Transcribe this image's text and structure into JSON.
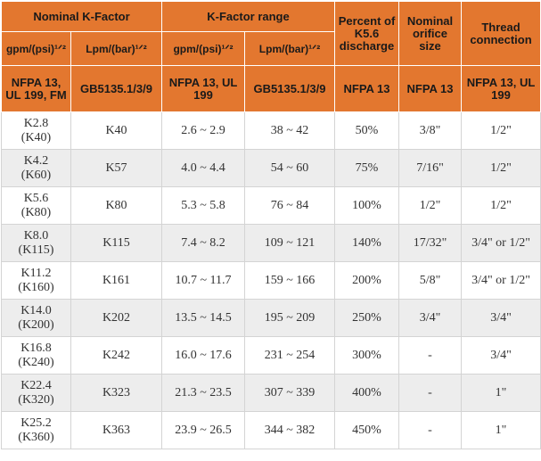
{
  "headers": {
    "nominal_k_factor": "Nominal K-Factor",
    "k_factor_range": "K-Factor range",
    "percent_k56": "Percent of K5.6 discharge",
    "nominal_orifice": "Nominal orifice size",
    "thread_connection": "Thread connection",
    "unit_gpm_1": "gpm/(psi)¹ᐟ²",
    "unit_lpm_1": "Lpm/(bar)¹ᐟ²",
    "unit_gpm_2": "gpm/(psi)¹ᐟ²",
    "unit_lpm_2": "Lpm/(bar)¹ᐟ²",
    "std_nfpa_ul_fm": "NFPA 13, UL 199, FM",
    "std_gb_1": "GB5135.1/3/9",
    "std_nfpa_ul_1": "NFPA 13, UL 199",
    "std_gb_2": "GB5135.1/3/9",
    "std_nfpa_1": "NFPA 13",
    "std_nfpa_2": "NFPA 13",
    "std_nfpa_ul_2": "NFPA 13, UL 199"
  },
  "rows": [
    {
      "k_nominal": "K2.8",
      "k_metric": "(K40)",
      "gb_k": "K40",
      "gpm_range": "2.6 ~ 2.9",
      "lpm_range": "38 ~ 42",
      "percent": "50%",
      "orifice": "3/8\"",
      "thread": "1/2\""
    },
    {
      "k_nominal": "K4.2",
      "k_metric": "(K60)",
      "gb_k": "K57",
      "gpm_range": "4.0 ~ 4.4",
      "lpm_range": "54 ~ 60",
      "percent": "75%",
      "orifice": "7/16\"",
      "thread": "1/2\""
    },
    {
      "k_nominal": "K5.6",
      "k_metric": "(K80)",
      "gb_k": "K80",
      "gpm_range": "5.3 ~ 5.8",
      "lpm_range": "76 ~ 84",
      "percent": "100%",
      "orifice": "1/2\"",
      "thread": "1/2\""
    },
    {
      "k_nominal": "K8.0",
      "k_metric": "(K115)",
      "gb_k": "K115",
      "gpm_range": "7.4 ~ 8.2",
      "lpm_range": "109 ~ 121",
      "percent": "140%",
      "orifice": "17/32\"",
      "thread": "3/4\" or 1/2\""
    },
    {
      "k_nominal": "K11.2",
      "k_metric": "(K160)",
      "gb_k": "K161",
      "gpm_range": "10.7 ~ 11.7",
      "lpm_range": "159 ~ 166",
      "percent": "200%",
      "orifice": "5/8\"",
      "thread": "3/4\" or 1/2\""
    },
    {
      "k_nominal": "K14.0",
      "k_metric": "(K200)",
      "gb_k": "K202",
      "gpm_range": "13.5 ~ 14.5",
      "lpm_range": "195 ~ 209",
      "percent": "250%",
      "orifice": "3/4\"",
      "thread": "3/4\""
    },
    {
      "k_nominal": "K16.8",
      "k_metric": "(K240)",
      "gb_k": "K242",
      "gpm_range": "16.0 ~ 17.6",
      "lpm_range": "231 ~ 254",
      "percent": "300%",
      "orifice": "-",
      "thread": "3/4\""
    },
    {
      "k_nominal": "K22.4",
      "k_metric": "(K320)",
      "gb_k": "K323",
      "gpm_range": "21.3 ~ 23.5",
      "lpm_range": "307 ~ 339",
      "percent": "400%",
      "orifice": "-",
      "thread": "1\""
    },
    {
      "k_nominal": "K25.2",
      "k_metric": "(K360)",
      "gb_k": "K363",
      "gpm_range": "23.9 ~ 26.5",
      "lpm_range": "344 ~ 382",
      "percent": "450%",
      "orifice": "-",
      "thread": "1\""
    }
  ]
}
